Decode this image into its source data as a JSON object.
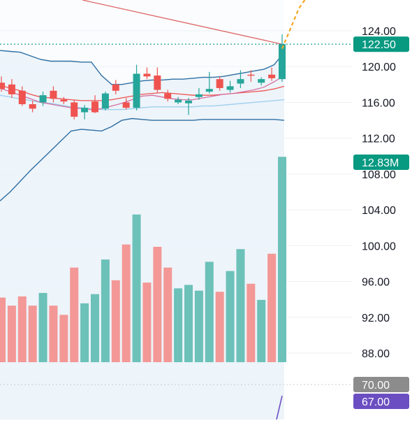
{
  "colors": {
    "up": "#26a69a",
    "down": "#ef5350",
    "up_volume": "#6cc1b9",
    "down_volume": "#f39896",
    "bollinger": "#2f6fa3",
    "bollinger_fill": "#e9f1fa",
    "ma_red": "#ef5350",
    "ma_pink": "#d46fa0",
    "ma_lightblue": "#9fd0ef",
    "long_ma": "#e06666",
    "forecast": "#f5a623",
    "price_badge": "#089981",
    "gray_badge": "#8c8c8c",
    "purple": "#6b4ec1",
    "grid": "#eef0f3",
    "axis_text": "#131722"
  },
  "chart_data": {
    "type": "candlestick",
    "price_axis": {
      "ticks": [
        "124.00",
        "120.00",
        "116.00",
        "112.00",
        "108.00",
        "104.00",
        "100.00",
        "96.00",
        "92.00",
        "88.00"
      ],
      "ylim": [
        87.3,
        127.7
      ]
    },
    "last_price_label": "122.50",
    "last_price": 122.5,
    "volume_label": "12.83M",
    "oscillator_labels": [
      "70.00",
      "67.00"
    ],
    "candles": [
      {
        "o": 118.2,
        "h": 118.9,
        "l": 117.2,
        "c": 117.5
      },
      {
        "o": 118.0,
        "h": 118.6,
        "l": 116.5,
        "c": 116.9
      },
      {
        "o": 117.3,
        "h": 117.8,
        "l": 115.6,
        "c": 115.8
      },
      {
        "o": 115.8,
        "h": 116.2,
        "l": 114.9,
        "c": 115.3
      },
      {
        "o": 116.0,
        "h": 117.2,
        "l": 115.6,
        "c": 116.8
      },
      {
        "o": 117.3,
        "h": 117.8,
        "l": 116.0,
        "c": 116.4
      },
      {
        "o": 116.3,
        "h": 116.6,
        "l": 115.8,
        "c": 116.1
      },
      {
        "o": 116.0,
        "h": 116.3,
        "l": 114.1,
        "c": 114.4
      },
      {
        "o": 114.9,
        "h": 115.7,
        "l": 114.1,
        "c": 115.4
      },
      {
        "o": 116.1,
        "h": 116.8,
        "l": 114.8,
        "c": 114.9
      },
      {
        "o": 115.3,
        "h": 117.2,
        "l": 115.1,
        "c": 117.0
      },
      {
        "o": 118.0,
        "h": 118.5,
        "l": 116.9,
        "c": 117.3
      },
      {
        "o": 116.0,
        "h": 116.5,
        "l": 115.2,
        "c": 115.4
      },
      {
        "o": 115.4,
        "h": 120.2,
        "l": 115.1,
        "c": 119.2
      },
      {
        "o": 119.2,
        "h": 119.9,
        "l": 118.6,
        "c": 118.9
      },
      {
        "o": 119.0,
        "h": 119.9,
        "l": 117.1,
        "c": 117.4
      },
      {
        "o": 117.0,
        "h": 117.4,
        "l": 116.1,
        "c": 116.4
      },
      {
        "o": 116.0,
        "h": 116.6,
        "l": 115.8,
        "c": 116.3
      },
      {
        "o": 115.9,
        "h": 116.5,
        "l": 114.6,
        "c": 116.2
      },
      {
        "o": 116.6,
        "h": 117.6,
        "l": 116.3,
        "c": 116.9
      },
      {
        "o": 117.2,
        "h": 119.4,
        "l": 117.0,
        "c": 117.5
      },
      {
        "o": 118.6,
        "h": 118.9,
        "l": 117.3,
        "c": 117.6
      },
      {
        "o": 117.4,
        "h": 118.4,
        "l": 117.1,
        "c": 117.8
      },
      {
        "o": 118.1,
        "h": 119.6,
        "l": 117.6,
        "c": 118.6
      },
      {
        "o": 119.1,
        "h": 119.6,
        "l": 118.3,
        "c": 119.0
      },
      {
        "o": 118.2,
        "h": 118.8,
        "l": 117.9,
        "c": 118.6
      },
      {
        "o": 119.1,
        "h": 119.9,
        "l": 118.4,
        "c": 118.7
      },
      {
        "o": 118.6,
        "h": 123.6,
        "l": 118.3,
        "c": 122.5
      }
    ],
    "volumes": [
      {
        "v": 0.56,
        "up": false
      },
      {
        "v": 0.49,
        "up": false
      },
      {
        "v": 0.57,
        "up": false
      },
      {
        "v": 0.49,
        "up": false
      },
      {
        "v": 0.6,
        "up": true
      },
      {
        "v": 0.49,
        "up": false
      },
      {
        "v": 0.41,
        "up": false
      },
      {
        "v": 0.82,
        "up": false
      },
      {
        "v": 0.51,
        "up": true
      },
      {
        "v": 0.59,
        "up": true
      },
      {
        "v": 0.89,
        "up": true
      },
      {
        "v": 0.71,
        "up": false
      },
      {
        "v": 1.02,
        "up": false
      },
      {
        "v": 1.28,
        "up": true
      },
      {
        "v": 0.69,
        "up": false
      },
      {
        "v": 1.0,
        "up": false
      },
      {
        "v": 0.82,
        "up": false
      },
      {
        "v": 0.64,
        "up": true
      },
      {
        "v": 0.67,
        "up": true
      },
      {
        "v": 0.62,
        "up": true
      },
      {
        "v": 0.87,
        "up": true
      },
      {
        "v": 0.61,
        "up": false
      },
      {
        "v": 0.79,
        "up": true
      },
      {
        "v": 0.98,
        "up": true
      },
      {
        "v": 0.68,
        "up": false
      },
      {
        "v": 0.54,
        "up": true
      },
      {
        "v": 0.94,
        "up": false
      },
      {
        "v": 1.78,
        "up": true
      }
    ],
    "bollinger_upper": [
      121.8,
      121.7,
      121.6,
      121.2,
      120.8,
      120.6,
      120.6,
      120.6,
      120.5,
      120.5,
      119.0,
      118.0,
      118.0,
      118.2,
      118.4,
      118.5,
      118.5,
      118.6,
      118.6,
      118.7,
      118.8,
      118.8,
      118.9,
      119.1,
      119.3,
      119.5,
      119.7,
      120.2,
      121.6
    ],
    "bollinger_lower": [
      105.0,
      106.0,
      107.2,
      108.4,
      109.5,
      110.6,
      111.7,
      112.8,
      113.0,
      112.9,
      112.8,
      113.3,
      114.0,
      114.2,
      114.1,
      114.0,
      114.0,
      114.0,
      114.0,
      114.0,
      114.1,
      114.1,
      114.1,
      114.1,
      114.1,
      114.1,
      114.1,
      114.1,
      114.0
    ],
    "ma_red": [
      117.9,
      117.6,
      117.3,
      116.9,
      116.6,
      116.5,
      116.4,
      116.3,
      116.2,
      116.2,
      116.2,
      116.3,
      116.5,
      116.7,
      116.9,
      117.0,
      117.1,
      117.0,
      116.9,
      116.8,
      116.8,
      116.8,
      116.9,
      117.0,
      117.1,
      117.2,
      117.3,
      117.5,
      117.8
    ],
    "ma_pink": [
      117.6,
      117.2,
      116.8,
      116.4,
      116.0,
      115.8,
      115.6,
      115.4,
      115.3,
      115.2,
      115.3,
      115.6,
      115.9,
      116.3,
      116.7,
      116.8,
      116.6,
      116.4,
      116.3,
      116.3,
      116.5,
      116.7,
      116.9,
      117.0,
      117.2,
      117.4,
      117.7,
      118.3,
      119.0
    ],
    "ma_lightblue": [
      116.8,
      116.6,
      116.4,
      116.2,
      116.0,
      115.9,
      115.7,
      115.5,
      115.4,
      115.3,
      115.2,
      115.2,
      115.2,
      115.3,
      115.4,
      115.5,
      115.5,
      115.5,
      115.5,
      115.5,
      115.6,
      115.6,
      115.7,
      115.8,
      115.9,
      116.0,
      116.1,
      116.2,
      116.3
    ],
    "long_ma": {
      "start": 127.8,
      "end": 122.5
    },
    "forecast": [
      [
        122.5,
        122.0
      ],
      [
        124.0,
        126.5
      ],
      [
        125.5,
        128.5
      ]
    ],
    "oscillator_segment": [
      [
        0,
        66
      ],
      [
        1,
        72
      ]
    ]
  }
}
